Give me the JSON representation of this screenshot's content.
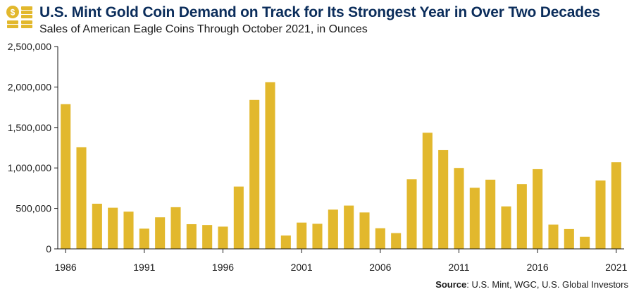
{
  "header": {
    "title": "U.S. Mint Gold Coin Demand on Track for Its Strongest Year in Over Two Decades",
    "subtitle": "Sales of American Eagle Coins Through October 2021, in Ounces"
  },
  "footer": {
    "source_label": "Source",
    "source_text": ": U.S. Mint, WGC, U.S. Global Investors"
  },
  "icon": {
    "name": "gold-coins-icon",
    "coin_symbol": "$"
  },
  "colors": {
    "bar": "#e2b82d",
    "title": "#0b2d5b",
    "axis": "#1a1a1a",
    "icon": "#e2b82d"
  },
  "chart_data": {
    "type": "bar",
    "title": "U.S. Mint Gold Coin Demand on Track for Its Strongest Year in Over Two Decades",
    "subtitle": "Sales of American Eagle Coins Through October 2021, in Ounces",
    "xlabel": "",
    "ylabel": "",
    "ylim": [
      0,
      2500000
    ],
    "yticks": [
      0,
      500000,
      1000000,
      1500000,
      2000000,
      2500000
    ],
    "ytick_labels": [
      "0",
      "500,000",
      "1,000,000",
      "1,500,000",
      "2,000,000",
      "2,500,000"
    ],
    "xtick_labels": [
      "1986",
      "1991",
      "1996",
      "2001",
      "2006",
      "2011",
      "2016",
      "2021"
    ],
    "grid": false,
    "categories": [
      "1986",
      "1987",
      "1988",
      "1989",
      "1990",
      "1991",
      "1992",
      "1993",
      "1994",
      "1995",
      "1996",
      "1997",
      "1998",
      "1999",
      "2000",
      "2001",
      "2002",
      "2003",
      "2004",
      "2005",
      "2006",
      "2007",
      "2008",
      "2009",
      "2010",
      "2011",
      "2012",
      "2013",
      "2014",
      "2015",
      "2016",
      "2017",
      "2018",
      "2019",
      "2020",
      "2021"
    ],
    "values": [
      1787750,
      1255000,
      558000,
      508500,
      460000,
      250000,
      390000,
      515000,
      305000,
      295000,
      275000,
      770000,
      1840000,
      2060000,
      165000,
      325000,
      310000,
      485000,
      535000,
      450000,
      255000,
      195000,
      860000,
      1435000,
      1220000,
      1000000,
      755000,
      855000,
      525000,
      800000,
      985000,
      300000,
      245000,
      150000,
      845000,
      1070000
    ]
  }
}
